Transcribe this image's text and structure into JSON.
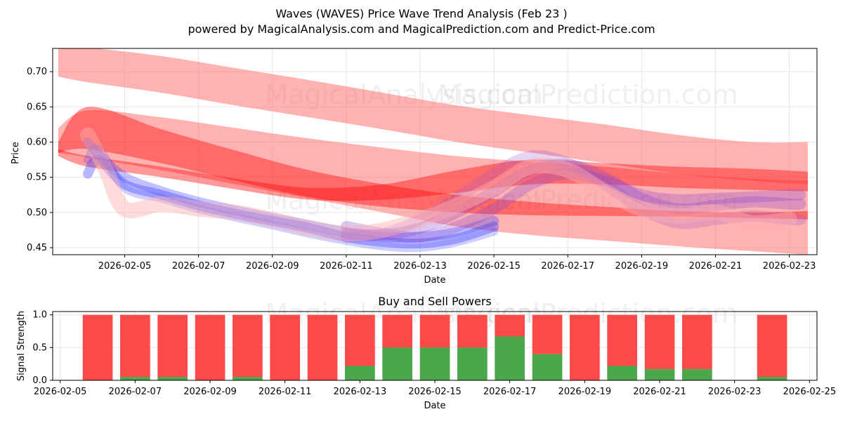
{
  "title_line1": "Waves (WAVES) Price Wave Trend Analysis (Feb 23 )",
  "title_line2": "powered by MagicalAnalysis.com and MagicalPrediction.com and Predict-Price.com",
  "watermarks": [
    "MagicalAnalysis.com",
    "MagicalPrediction.com"
  ],
  "chart_data": [
    {
      "type": "line",
      "title": "",
      "xlabel": "Date",
      "ylabel": "Price",
      "xlim": [
        -0.95,
        19.75
      ],
      "ylim": [
        0.44,
        0.733
      ],
      "x_start_date": "2026-02-04",
      "x_ticks": [
        1,
        3,
        5,
        7,
        9,
        11,
        13,
        15,
        17,
        19
      ],
      "x_tick_labels": [
        "2026-02-05",
        "2026-02-07",
        "2026-02-09",
        "2026-02-11",
        "2026-02-13",
        "2026-02-15",
        "2026-02-17",
        "2026-02-19",
        "2026-02-21",
        "2026-02-23"
      ],
      "y_ticks": [
        0.45,
        0.5,
        0.55,
        0.6,
        0.65,
        0.7
      ],
      "y_tick_labels": [
        "0.45",
        "0.50",
        "0.55",
        "0.60",
        "0.65",
        "0.70"
      ],
      "grid": true,
      "colors": {
        "red_band": "#ff0000",
        "pink_halo": "#ffb6b6",
        "blue_wave": "#3333ff",
        "purple_wave": "#8844cc"
      },
      "bands": [
        {
          "name": "upper-trend-band",
          "color": "#ff6666",
          "opacity": 0.5,
          "x": [
            -0.8,
            0,
            2,
            4,
            6,
            8,
            10,
            12,
            14,
            16,
            18,
            19.5
          ],
          "upper": [
            0.745,
            0.735,
            0.722,
            0.705,
            0.688,
            0.67,
            0.652,
            0.638,
            0.625,
            0.61,
            0.6,
            0.6
          ],
          "lower": [
            0.693,
            0.685,
            0.67,
            0.652,
            0.635,
            0.618,
            0.6,
            0.585,
            0.57,
            0.555,
            0.545,
            0.54
          ]
        },
        {
          "name": "middle-trend-band",
          "color": "#ff6666",
          "opacity": 0.5,
          "x": [
            -0.8,
            0,
            2,
            4,
            6,
            8,
            10,
            12,
            14,
            16,
            18,
            19.5
          ],
          "upper": [
            0.62,
            0.645,
            0.635,
            0.62,
            0.605,
            0.592,
            0.58,
            0.572,
            0.565,
            0.555,
            0.548,
            0.545
          ],
          "lower": [
            0.585,
            0.578,
            0.56,
            0.54,
            0.52,
            0.5,
            0.48,
            0.468,
            0.46,
            0.452,
            0.445,
            0.44
          ]
        },
        {
          "name": "strong-trend-band-1",
          "color": "#ff0000",
          "opacity": 0.4,
          "x": [
            -0.8,
            0,
            2,
            4,
            6,
            8,
            10,
            12,
            14,
            16,
            18,
            19.5
          ],
          "upper": [
            0.6,
            0.65,
            0.618,
            0.588,
            0.56,
            0.54,
            0.525,
            0.515,
            0.508,
            0.502,
            0.5,
            0.502
          ],
          "lower": [
            0.585,
            0.59,
            0.57,
            0.545,
            0.522,
            0.508,
            0.5,
            0.496,
            0.495,
            0.494,
            0.492,
            0.49
          ]
        },
        {
          "name": "strong-trend-band-2",
          "color": "#ff0000",
          "opacity": 0.4,
          "x": [
            -0.8,
            0,
            2,
            4,
            6,
            8,
            10,
            12,
            14,
            16,
            18,
            19.5
          ],
          "upper": [
            0.59,
            0.58,
            0.565,
            0.548,
            0.535,
            0.54,
            0.56,
            0.575,
            0.57,
            0.565,
            0.562,
            0.558
          ],
          "lower": [
            0.58,
            0.565,
            0.55,
            0.533,
            0.518,
            0.518,
            0.528,
            0.54,
            0.54,
            0.535,
            0.532,
            0.53
          ]
        }
      ],
      "waves": [
        {
          "name": "blue-wave-1",
          "color": "#3333ff",
          "opacity": 0.35,
          "width": 14,
          "x": [
            0,
            0.3,
            1,
            2,
            3,
            4,
            5,
            6,
            7,
            8,
            9,
            10,
            11
          ],
          "y": [
            0.555,
            0.575,
            0.54,
            0.525,
            0.51,
            0.498,
            0.488,
            0.478,
            0.465,
            0.458,
            0.456,
            0.463,
            0.48
          ]
        },
        {
          "name": "blue-wave-2",
          "color": "#3333ff",
          "opacity": 0.3,
          "width": 14,
          "x": [
            0,
            0.3,
            1,
            2,
            3,
            4,
            5,
            6,
            7,
            8,
            9,
            10,
            11
          ],
          "y": [
            0.6,
            0.582,
            0.55,
            0.53,
            0.515,
            0.503,
            0.492,
            0.482,
            0.472,
            0.465,
            0.465,
            0.472,
            0.488
          ]
        },
        {
          "name": "blue-wave-3",
          "color": "#4444ff",
          "opacity": 0.25,
          "width": 12,
          "x": [
            0,
            0.3,
            1,
            2,
            3,
            4,
            5,
            6,
            7,
            8,
            9,
            10,
            11
          ],
          "y": [
            0.575,
            0.59,
            0.535,
            0.52,
            0.505,
            0.493,
            0.482,
            0.47,
            0.46,
            0.452,
            0.45,
            0.458,
            0.473
          ]
        },
        {
          "name": "purple-wave-1",
          "color": "#8844cc",
          "opacity": 0.3,
          "width": 16,
          "x": [
            7,
            8,
            9,
            10,
            11,
            12,
            13,
            14,
            15,
            16,
            17,
            18,
            19,
            19.3
          ],
          "y": [
            0.47,
            0.468,
            0.478,
            0.5,
            0.53,
            0.56,
            0.568,
            0.55,
            0.52,
            0.505,
            0.51,
            0.515,
            0.512,
            0.512
          ]
        },
        {
          "name": "purple-wave-2",
          "color": "#8844cc",
          "opacity": 0.3,
          "width": 16,
          "x": [
            7,
            8,
            9,
            10,
            11,
            12,
            13,
            14,
            15,
            16,
            17,
            18,
            19,
            19.3
          ],
          "y": [
            0.48,
            0.47,
            0.465,
            0.48,
            0.505,
            0.54,
            0.555,
            0.545,
            0.525,
            0.518,
            0.52,
            0.522,
            0.525,
            0.525
          ]
        },
        {
          "name": "purple-wave-3",
          "color": "#9955cc",
          "opacity": 0.25,
          "width": 16,
          "x": [
            7,
            8,
            9,
            10,
            11,
            12,
            13,
            14,
            15,
            16,
            17,
            18,
            19,
            19.3
          ],
          "y": [
            0.465,
            0.47,
            0.49,
            0.52,
            0.555,
            0.58,
            0.57,
            0.54,
            0.505,
            0.485,
            0.49,
            0.495,
            0.49,
            0.49
          ]
        },
        {
          "name": "pink-halo-wave",
          "color": "#ffb0b0",
          "opacity": 0.45,
          "width": 22,
          "x": [
            0,
            0.5,
            1,
            2,
            3,
            4,
            5,
            6,
            7,
            8,
            9,
            10,
            11,
            12,
            13,
            14,
            15,
            16,
            17,
            18,
            19
          ],
          "y": [
            0.61,
            0.56,
            0.505,
            0.512,
            0.505,
            0.5,
            0.49,
            0.478,
            0.47,
            0.475,
            0.49,
            0.51,
            0.535,
            0.565,
            0.56,
            0.53,
            0.505,
            0.495,
            0.5,
            0.485,
            0.49
          ]
        }
      ]
    },
    {
      "type": "bar",
      "title": "Buy and Sell Powers",
      "xlabel": "Date",
      "ylabel": "Signal Strength",
      "xlim": [
        -0.2,
        20.2
      ],
      "ylim": [
        0,
        1.05
      ],
      "x_start_date": "2026-02-05",
      "x_ticks": [
        0,
        2,
        4,
        6,
        8,
        10,
        12,
        14,
        16,
        18,
        20
      ],
      "x_tick_labels": [
        "2026-02-05",
        "2026-02-07",
        "2026-02-09",
        "2026-02-11",
        "2026-02-13",
        "2026-02-15",
        "2026-02-17",
        "2026-02-19",
        "2026-02-21",
        "2026-02-23",
        "2026-02-25"
      ],
      "y_ticks": [
        0.0,
        0.5,
        1.0
      ],
      "y_tick_labels": [
        "0.0",
        "0.5",
        "1.0"
      ],
      "grid": true,
      "colors": {
        "buy": "#4aa84a",
        "sell": "#ff4a4a"
      },
      "bars": [
        {
          "x": 1,
          "buy": 0.0,
          "total": 1.0
        },
        {
          "x": 2,
          "buy": 0.05,
          "total": 1.0
        },
        {
          "x": 3,
          "buy": 0.05,
          "total": 1.0
        },
        {
          "x": 4,
          "buy": 0.0,
          "total": 1.0
        },
        {
          "x": 5,
          "buy": 0.05,
          "total": 1.0
        },
        {
          "x": 6,
          "buy": 0.0,
          "total": 1.0
        },
        {
          "x": 7,
          "buy": 0.0,
          "total": 1.0
        },
        {
          "x": 8,
          "buy": 0.22,
          "total": 1.0
        },
        {
          "x": 9,
          "buy": 0.5,
          "total": 1.0
        },
        {
          "x": 10,
          "buy": 0.5,
          "total": 1.0
        },
        {
          "x": 11,
          "buy": 0.5,
          "total": 1.0
        },
        {
          "x": 12,
          "buy": 0.67,
          "total": 1.0
        },
        {
          "x": 13,
          "buy": 0.4,
          "total": 1.0
        },
        {
          "x": 14,
          "buy": 0.0,
          "total": 1.0
        },
        {
          "x": 15,
          "buy": 0.22,
          "total": 1.0
        },
        {
          "x": 16,
          "buy": 0.17,
          "total": 1.0
        },
        {
          "x": 17,
          "buy": 0.17,
          "total": 1.0
        },
        {
          "x": 19,
          "buy": 0.05,
          "total": 1.0
        }
      ]
    }
  ]
}
